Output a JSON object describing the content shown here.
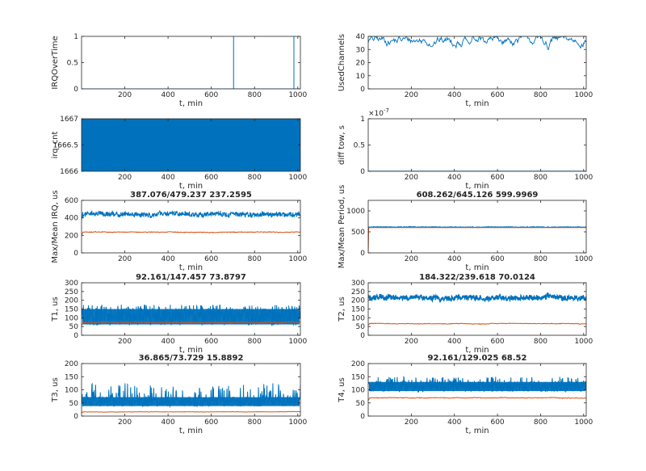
{
  "figure": {
    "colors": {
      "series1": "#0072BD",
      "series2": "#D95319",
      "axis": "#262626"
    },
    "panels": [
      {
        "id": "irq-over-time",
        "title": "",
        "ylabel": "IRQOverTime",
        "xlabel": "t, min",
        "xlim": [
          0,
          1012
        ],
        "ylim": [
          0,
          1
        ],
        "xticks": [
          200,
          400,
          600,
          800,
          1000
        ],
        "yticks": [
          0,
          0.5,
          1
        ],
        "ytick_labels": [
          "0",
          "0.5",
          "1"
        ],
        "exponent": "",
        "style": "spikes",
        "series": [
          {
            "color": "#0072BD",
            "baseline": 0,
            "spikes": [
              {
                "x": 703,
                "y": 1
              },
              {
                "x": 982,
                "y": 1
              }
            ]
          }
        ]
      },
      {
        "id": "used-channels",
        "title": "",
        "ylabel": "UsedChannels",
        "xlabel": "t, min",
        "xlim": [
          0,
          1012
        ],
        "ylim": [
          0,
          40
        ],
        "xticks": [
          200,
          400,
          600,
          800,
          1000
        ],
        "yticks": [
          0,
          10,
          20,
          30,
          40
        ],
        "ytick_labels": [
          "0",
          "10",
          "20",
          "30",
          "40"
        ],
        "exponent": "",
        "style": "line",
        "series": [
          {
            "color": "#0072BD",
            "start": 0,
            "mean": 37,
            "spread": 3,
            "min": 28,
            "max": 40,
            "dips": [
              {
                "x": 295,
                "y": 32
              },
              {
                "x": 470,
                "y": 34
              },
              {
                "x": 835,
                "y": 29
              }
            ]
          }
        ]
      },
      {
        "id": "irq-cnt",
        "title": "",
        "ylabel": "irq_cnt",
        "xlabel": "t, min",
        "xlim": [
          0,
          1012
        ],
        "ylim": [
          1666,
          1667
        ],
        "xticks": [
          200,
          400,
          600,
          800,
          1000
        ],
        "yticks": [
          1666,
          1666.5,
          1667
        ],
        "ytick_labels": [
          "1666",
          "1666.5",
          "1667"
        ],
        "exponent": "",
        "style": "filled",
        "series": [
          {
            "color": "#0072BD",
            "low": 1666,
            "high": 1667
          }
        ]
      },
      {
        "id": "diff-tow",
        "title": "",
        "ylabel": "diff tow, s",
        "xlabel": "t, min",
        "xlim": [
          0,
          1012
        ],
        "ylim": [
          0,
          1
        ],
        "xticks": [
          200,
          400,
          600,
          800,
          1000
        ],
        "yticks": [
          0,
          0.5,
          1
        ],
        "ytick_labels": [
          "0",
          "0.5",
          "1"
        ],
        "exponent": "×10",
        "exponent_power": "-7",
        "style": "flat",
        "series": [
          {
            "color": "#0072BD",
            "value": 0
          }
        ]
      },
      {
        "id": "max-mean-irq",
        "title": "387.076/479.237  237.2595",
        "ylabel": "Max/Mean IRQ, us",
        "xlabel": "t, min",
        "xlim": [
          0,
          1012
        ],
        "ylim": [
          0,
          600
        ],
        "xticks": [
          200,
          400,
          600,
          800,
          1000
        ],
        "yticks": [
          0,
          200,
          400,
          600
        ],
        "ytick_labels": [
          "0",
          "200",
          "400",
          "600"
        ],
        "exponent": "",
        "style": "noisy",
        "series": [
          {
            "color": "#0072BD",
            "start": 380,
            "mean": 440,
            "spread": 35,
            "min": 370,
            "max": 530,
            "width": 1.0
          },
          {
            "color": "#D95319",
            "start": 200,
            "mean": 237,
            "spread": 9,
            "min": 215,
            "max": 265,
            "width": 1.0
          }
        ]
      },
      {
        "id": "max-mean-period",
        "title": "608.262/645.126  599.9969",
        "ylabel": "Max/Mean Period, us",
        "xlabel": "t, min",
        "xlim": [
          0,
          1012
        ],
        "ylim": [
          0,
          1250
        ],
        "xticks": [
          200,
          400,
          600,
          800,
          1000
        ],
        "yticks": [
          0,
          500,
          1000
        ],
        "ytick_labels": [
          "0",
          "500",
          "1000"
        ],
        "exponent": "",
        "style": "noisy",
        "series": [
          {
            "color": "#0072BD",
            "start": 610,
            "mean": 615,
            "spread": 10,
            "min": 600,
            "max": 660,
            "width": 1.0
          },
          {
            "color": "#D95319",
            "start": 0,
            "mean": 600,
            "spread": 1,
            "min": 598,
            "max": 602,
            "width": 1.0
          }
        ]
      },
      {
        "id": "t1",
        "title": "92.161/147.457  73.8797",
        "ylabel": "T1, us",
        "xlabel": "t, min",
        "xlim": [
          0,
          1012
        ],
        "ylim": [
          0,
          300
        ],
        "xticks": [
          200,
          400,
          600,
          800,
          1000
        ],
        "yticks": [
          0,
          50,
          100,
          150,
          200,
          250,
          300
        ],
        "ytick_labels": [
          "0",
          "50",
          "100",
          "150",
          "200",
          "250",
          "300"
        ],
        "exponent": "",
        "style": "band",
        "series": [
          {
            "color": "#0072BD",
            "low": 62,
            "high": 150,
            "mean": 105,
            "peaks": 175,
            "width": 1.0
          },
          {
            "color": "#D95319",
            "start": 50,
            "mean": 74,
            "spread": 4,
            "min": 65,
            "max": 84,
            "width": 1.0
          }
        ]
      },
      {
        "id": "t2",
        "title": "184.322/239.618  70.0124",
        "ylabel": "T2, us",
        "xlabel": "t, min",
        "xlim": [
          0,
          1012
        ],
        "ylim": [
          0,
          300
        ],
        "xticks": [
          200,
          400,
          600,
          800,
          1000
        ],
        "yticks": [
          0,
          50,
          100,
          150,
          200,
          250,
          300
        ],
        "ytick_labels": [
          "0",
          "50",
          "100",
          "150",
          "200",
          "250",
          "300"
        ],
        "exponent": "",
        "style": "noisy",
        "series": [
          {
            "color": "#0072BD",
            "start": 220,
            "mean": 215,
            "spread": 18,
            "min": 180,
            "max": 260,
            "width": 1.4
          },
          {
            "color": "#D95319",
            "start": 60,
            "mean": 66,
            "spread": 4,
            "min": 55,
            "max": 78,
            "width": 1.0
          }
        ]
      },
      {
        "id": "t3",
        "title": "36.865/73.729  15.8892",
        "ylabel": "T3, us",
        "xlabel": "t, min",
        "xlim": [
          0,
          1012
        ],
        "ylim": [
          0,
          200
        ],
        "xticks": [
          200,
          400,
          600,
          800,
          1000
        ],
        "yticks": [
          0,
          50,
          100,
          150,
          200
        ],
        "ytick_labels": [
          "0",
          "50",
          "100",
          "150",
          "200"
        ],
        "exponent": "",
        "style": "band",
        "series": [
          {
            "color": "#0072BD",
            "low": 38,
            "high": 72,
            "mean": 55,
            "peaks": 125,
            "width": 1.0
          },
          {
            "color": "#D95319",
            "start": 12,
            "mean": 16,
            "spread": 1.5,
            "min": 12,
            "max": 22,
            "width": 1.0
          }
        ]
      },
      {
        "id": "t4",
        "title": "92.161/129.025  68.52",
        "ylabel": "T4, us",
        "xlabel": "t, min",
        "xlim": [
          0,
          1012
        ],
        "ylim": [
          0,
          200
        ],
        "xticks": [
          200,
          400,
          600,
          800,
          1000
        ],
        "yticks": [
          0,
          50,
          100,
          150,
          200
        ],
        "ytick_labels": [
          "0",
          "50",
          "100",
          "150",
          "200"
        ],
        "exponent": "",
        "style": "band",
        "series": [
          {
            "color": "#0072BD",
            "low": 95,
            "high": 130,
            "mean": 112,
            "peaks": 150,
            "width": 1.0
          },
          {
            "color": "#D95319",
            "start": 60,
            "mean": 69,
            "spread": 3,
            "min": 60,
            "max": 78,
            "width": 1.0
          }
        ]
      }
    ]
  },
  "chart_data": [
    {
      "type": "line",
      "title": "",
      "xlabel": "t, min",
      "ylabel": "IRQOverTime",
      "ylim": [
        0,
        1
      ],
      "x": [
        0,
        702,
        703,
        704,
        981,
        982,
        983,
        1012
      ],
      "values": [
        0,
        0,
        1,
        0,
        0,
        1,
        0,
        0
      ]
    },
    {
      "type": "line",
      "title": "",
      "xlabel": "t, min",
      "ylabel": "UsedChannels",
      "ylim": [
        0,
        40
      ],
      "x": [
        0,
        200,
        295,
        400,
        470,
        600,
        800,
        835,
        1000
      ],
      "values": [
        37,
        38,
        32,
        37,
        34,
        38,
        38,
        29,
        38
      ]
    },
    {
      "type": "line",
      "title": "",
      "xlabel": "t, min",
      "ylabel": "irq_cnt",
      "ylim": [
        1666,
        1667
      ],
      "note_values": "alternates 1666/1667",
      "x": [
        0,
        1012
      ],
      "values": [
        1666.5,
        1666.5
      ]
    },
    {
      "type": "line",
      "title": "",
      "xlabel": "t, min",
      "ylabel": "diff tow, s",
      "ylim": [
        0,
        1e-07
      ],
      "x": [
        0,
        1012
      ],
      "values": [
        0,
        0
      ]
    },
    {
      "type": "line",
      "title": "387.076/479.237  237.2595",
      "xlabel": "t, min",
      "ylabel": "Max/Mean IRQ, us",
      "ylim": [
        0,
        600
      ],
      "series": [
        {
          "name": "",
          "values": [
            440,
            440
          ]
        },
        {
          "name": "",
          "values": [
            237,
            237
          ]
        }
      ],
      "x": [
        0,
        1012
      ]
    },
    {
      "type": "line",
      "title": "608.262/645.126  599.9969",
      "xlabel": "t, min",
      "ylabel": "Max/Mean Period, us",
      "ylim": [
        0,
        1250
      ],
      "series": [
        {
          "name": "",
          "values": [
            615,
            615
          ]
        },
        {
          "name": "",
          "values": [
            600,
            600
          ]
        }
      ],
      "x": [
        0,
        1012
      ]
    },
    {
      "type": "line",
      "title": "92.161/147.457  73.8797",
      "xlabel": "t, min",
      "ylabel": "T1, us",
      "ylim": [
        0,
        300
      ],
      "series": [
        {
          "name": "",
          "values": [
            105,
            105
          ]
        },
        {
          "name": "",
          "values": [
            74,
            74
          ]
        }
      ],
      "x": [
        0,
        1012
      ]
    },
    {
      "type": "line",
      "title": "184.322/239.618  70.0124",
      "xlabel": "t, min",
      "ylabel": "T2, us",
      "ylim": [
        0,
        300
      ],
      "series": [
        {
          "name": "",
          "values": [
            215,
            215
          ]
        },
        {
          "name": "",
          "values": [
            66,
            66
          ]
        }
      ],
      "x": [
        0,
        1012
      ]
    },
    {
      "type": "line",
      "title": "36.865/73.729  15.8892",
      "xlabel": "t, min",
      "ylabel": "T3, us",
      "ylim": [
        0,
        200
      ],
      "series": [
        {
          "name": "",
          "values": [
            55,
            55
          ]
        },
        {
          "name": "",
          "values": [
            16,
            16
          ]
        }
      ],
      "x": [
        0,
        1012
      ]
    },
    {
      "type": "line",
      "title": "92.161/129.025  68.52",
      "xlabel": "t, min",
      "ylabel": "T4, us",
      "ylim": [
        0,
        200
      ],
      "series": [
        {
          "name": "",
          "values": [
            112,
            112
          ]
        },
        {
          "name": "",
          "values": [
            69,
            69
          ]
        }
      ],
      "x": [
        0,
        1012
      ]
    }
  ]
}
